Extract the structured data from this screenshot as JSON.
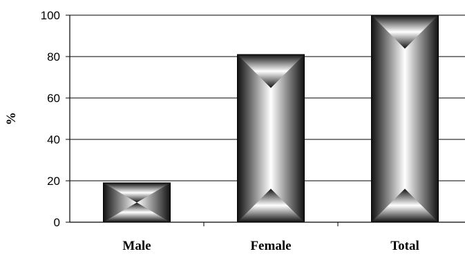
{
  "chart_data": {
    "type": "bar",
    "categories": [
      "Male",
      "Female",
      "Total"
    ],
    "values": [
      19,
      81,
      100
    ],
    "title": "",
    "xlabel": "",
    "ylabel": "%",
    "ylim": [
      0,
      100
    ],
    "yticks": [
      "0",
      "20",
      "40",
      "60",
      "80",
      "100"
    ],
    "grid": true,
    "legend": "none"
  }
}
